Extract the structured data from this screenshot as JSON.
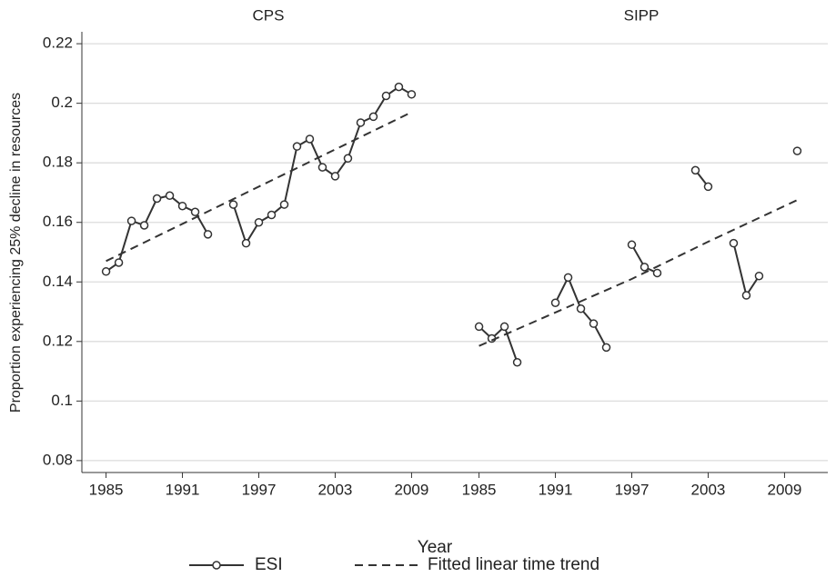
{
  "ylabel": "Proportion experiencing 25% decline in resources",
  "xlabel": "Year",
  "chart_data": [
    {
      "type": "line",
      "title": "CPS",
      "xlim": [
        1983.1,
        2012.4
      ],
      "ylim": [
        0.076,
        0.224
      ],
      "xticks": [
        1985,
        1991,
        1997,
        2003,
        2009
      ],
      "yticks": [
        0.08,
        0.1,
        0.12,
        0.14,
        0.16,
        0.18,
        0.2,
        0.22
      ],
      "grid": true,
      "series": [
        {
          "name": "ESI",
          "color": "#333333",
          "marker": "circle",
          "dashed": false,
          "x": [
            1985,
            1986,
            1987,
            1988,
            1989,
            1990,
            1991,
            1992,
            1993,
            1994,
            1995,
            1996,
            1997,
            1998,
            1999,
            2000,
            2001,
            2002,
            2003,
            2004,
            2005,
            2006,
            2007,
            2008,
            2009
          ],
          "values": [
            0.1435,
            0.1465,
            0.1605,
            0.159,
            0.168,
            0.169,
            0.1655,
            0.1635,
            0.156,
            null,
            0.166,
            0.153,
            0.16,
            0.1625,
            0.166,
            0.1855,
            0.188,
            0.1785,
            0.1755,
            0.1815,
            0.1935,
            0.1955,
            0.2025,
            0.2055,
            0.203
          ]
        },
        {
          "name": "Fitted linear time trend",
          "color": "#333333",
          "dashed": true,
          "x": [
            1985,
            2009
          ],
          "values": [
            0.147,
            0.197
          ]
        }
      ]
    },
    {
      "type": "line",
      "title": "SIPP",
      "xlim": [
        1983.1,
        2012.4
      ],
      "ylim": [
        0.076,
        0.224
      ],
      "xticks": [
        1985,
        1991,
        1997,
        2003,
        2009
      ],
      "yticks": [
        0.08,
        0.1,
        0.12,
        0.14,
        0.16,
        0.18,
        0.2,
        0.22
      ],
      "grid": true,
      "series": [
        {
          "color": "#333333",
          "marker": "circle",
          "dashed": false,
          "x": [
            1985,
            1986,
            1987,
            1988,
            1989,
            1990,
            1991,
            1992,
            1993,
            1994,
            1995,
            1996,
            1997,
            1998,
            1999,
            2000,
            2001,
            2002,
            2003,
            2004,
            2005,
            2006,
            2007,
            2008,
            2009,
            2010
          ],
          "values": [
            0.125,
            0.121,
            0.125,
            0.113,
            null,
            null,
            0.133,
            0.1415,
            0.131,
            0.126,
            0.118,
            null,
            0.1525,
            0.145,
            0.143,
            null,
            null,
            0.1775,
            0.172,
            null,
            0.153,
            0.1355,
            0.142,
            null,
            null,
            0.184
          ]
        },
        {
          "color": "#333333",
          "dashed": true,
          "x": [
            1985,
            1997,
            2003,
            2010
          ],
          "values": [
            0.1185,
            0.141,
            0.1535,
            0.1675
          ]
        }
      ]
    }
  ]
}
